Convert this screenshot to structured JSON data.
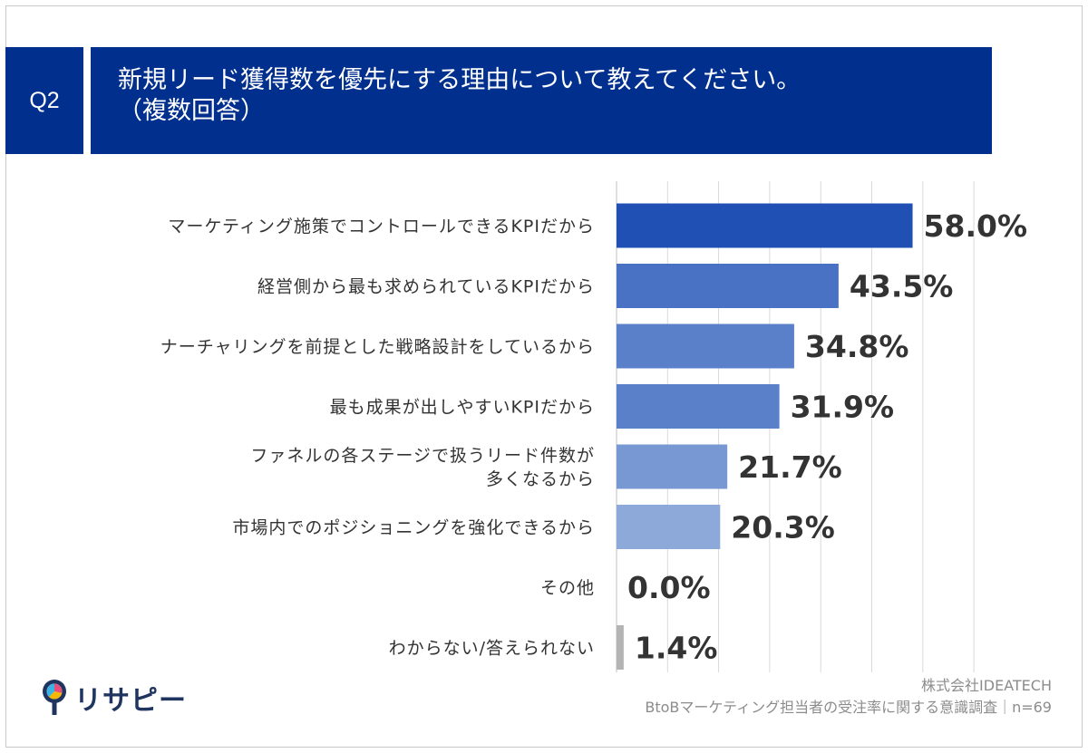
{
  "header": {
    "badge": "Q2",
    "title_line1": "新規リード獲得数を優先にする理由について教えてください。",
    "title_line2": "（複数回答）"
  },
  "chart_data": {
    "type": "bar",
    "orientation": "horizontal",
    "categories": [
      [
        "マーケティング施策でコントロールできるKPIだから"
      ],
      [
        "経営側から最も求められているKPIだから"
      ],
      [
        "ナーチャリングを前提とした戦略設計をしているから"
      ],
      [
        "最も成果が出しやすいKPIだから"
      ],
      [
        "ファネルの各ステージで扱うリード件数が",
        "多くなるから"
      ],
      [
        "市場内でのポジショニングを強化できるから"
      ],
      [
        "その他"
      ],
      [
        "わからない/答えられない"
      ]
    ],
    "values": [
      58.0,
      43.5,
      34.8,
      31.9,
      21.7,
      20.3,
      0.0,
      1.4
    ],
    "value_labels": [
      "58.0%",
      "43.5%",
      "34.8%",
      "31.9%",
      "21.7%",
      "20.3%",
      "0.0%",
      "1.4%"
    ],
    "bar_colors": [
      "#2150b4",
      "#4a72c4",
      "#5a80ca",
      "#5a80ca",
      "#7898d3",
      "#8ca9da",
      "#8ca9da",
      "#b4b4b4"
    ],
    "xlim": [
      0,
      70
    ],
    "grid": true
  },
  "logo": {
    "text": "リサピー"
  },
  "footer": {
    "company": "株式会社IDEATECH",
    "survey": "BtoBマーケティング担当者の受注率に関する意識調査｜n=69"
  }
}
